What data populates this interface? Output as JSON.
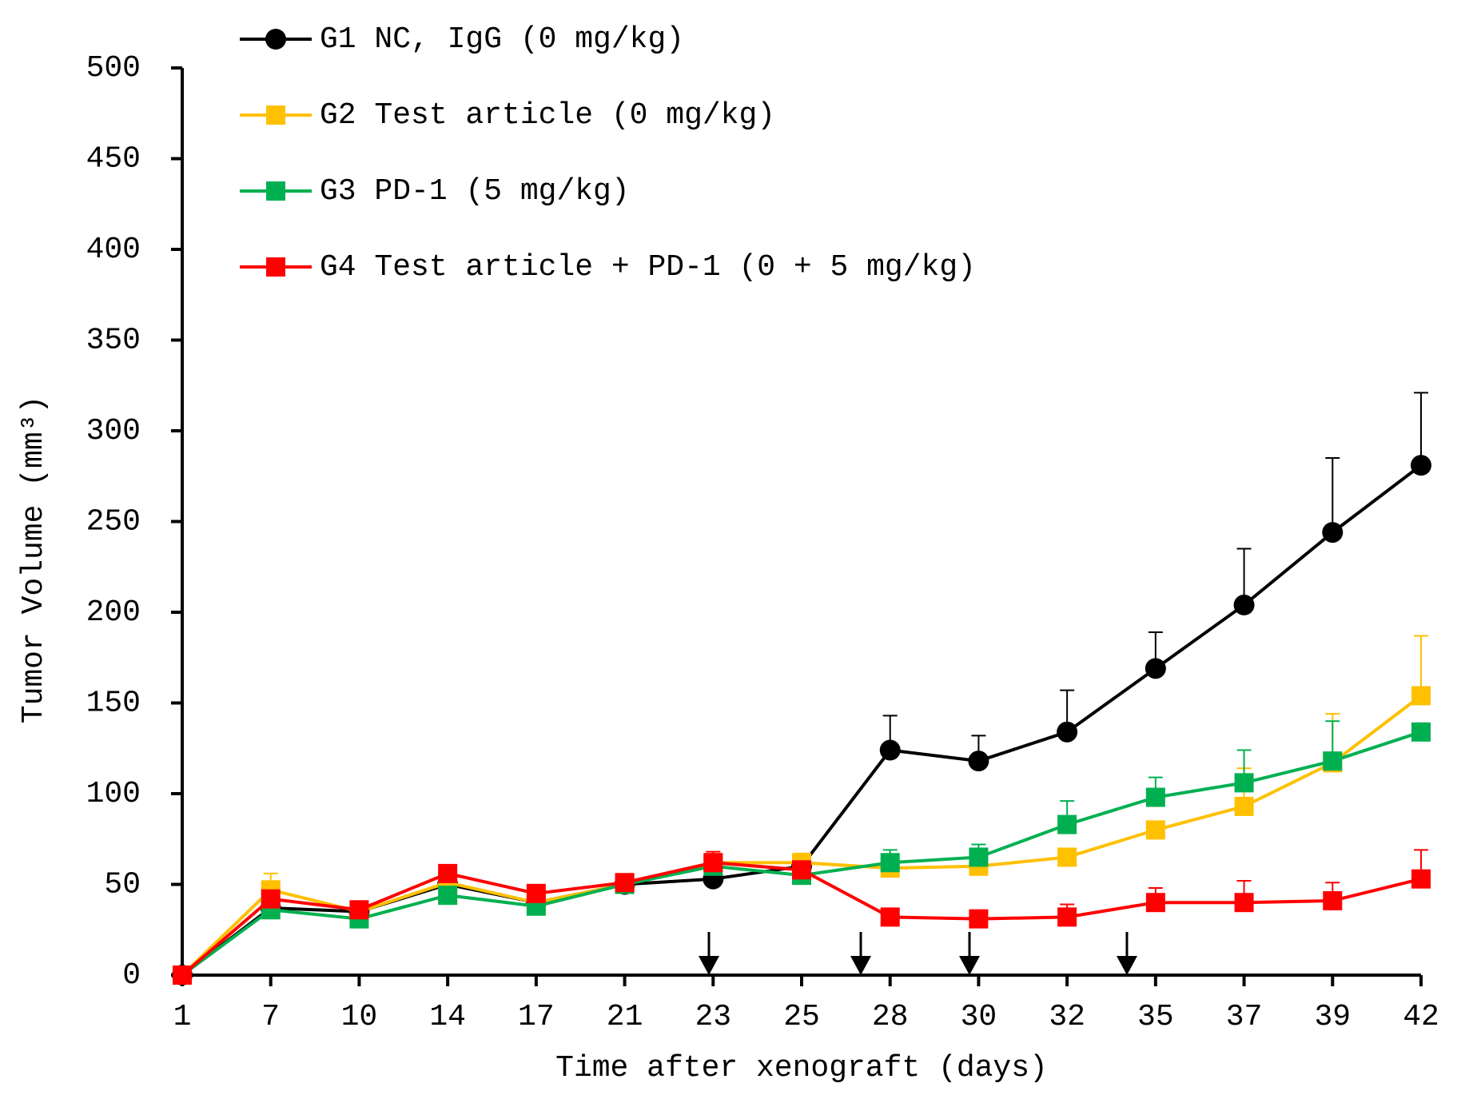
{
  "chart_data": {
    "type": "line",
    "xlabel": "Time after xenograft (days)",
    "ylabel": "Tumor Volume (mm³)",
    "categories": [
      "1",
      "7",
      "10",
      "14",
      "17",
      "21",
      "23",
      "25",
      "28",
      "30",
      "32",
      "35",
      "37",
      "39",
      "42"
    ],
    "ylim": [
      0,
      500
    ],
    "yticks": [
      0,
      50,
      100,
      150,
      200,
      250,
      300,
      350,
      400,
      450,
      500
    ],
    "legend": "upper left",
    "series": [
      {
        "name": "G1 NC, IgG (0 mg/kg)",
        "color": "#000000",
        "marker": "circle",
        "values": [
          0,
          37,
          35,
          50,
          40,
          50,
          53,
          60,
          124,
          118,
          134,
          169,
          204,
          244,
          281
        ],
        "errors": [
          null,
          null,
          null,
          null,
          null,
          null,
          null,
          null,
          19,
          14,
          23,
          20,
          31,
          41,
          40
        ]
      },
      {
        "name": "G2 Test article (0 mg/kg)",
        "color": "#ffc000",
        "marker": "square",
        "values": [
          0,
          47,
          35,
          51,
          40,
          50,
          62,
          62,
          59,
          60,
          65,
          80,
          93,
          117,
          154
        ],
        "errors": [
          null,
          9,
          null,
          null,
          null,
          null,
          null,
          5,
          null,
          null,
          null,
          null,
          21,
          27,
          33
        ]
      },
      {
        "name": "G3 PD-1 (5 mg/kg)",
        "color": "#00b050",
        "marker": "square",
        "values": [
          0,
          36,
          31,
          44,
          38,
          50,
          60,
          55,
          62,
          65,
          83,
          98,
          106,
          118,
          134
        ],
        "errors": [
          null,
          null,
          null,
          null,
          null,
          null,
          null,
          null,
          7,
          7,
          13,
          11,
          18,
          22,
          null
        ]
      },
      {
        "name": "G4 Test article + PD-1 (0 + 5 mg/kg)",
        "color": "#ff0000",
        "marker": "square",
        "values": [
          0,
          42,
          36,
          56,
          45,
          51,
          62,
          58,
          32,
          31,
          32,
          40,
          40,
          41,
          53
        ],
        "errors": [
          null,
          null,
          null,
          null,
          null,
          null,
          6,
          null,
          null,
          null,
          7,
          8,
          12,
          10,
          16
        ]
      }
    ]
  }
}
